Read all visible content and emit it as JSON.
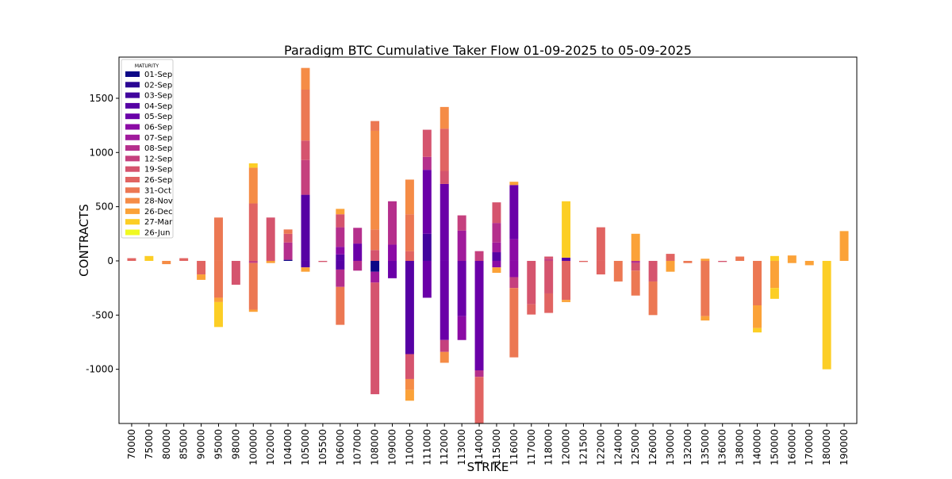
{
  "chart_data": {
    "type": "bar",
    "stacked": true,
    "title": "Paradigm BTC Cumulative Taker Flow 01-09-2025 to 05-09-2025",
    "xlabel": "STRIKE",
    "ylabel": "CONTRACTS",
    "ylim": [
      -1500,
      1880
    ],
    "yticks": [
      -1000,
      -500,
      0,
      500,
      1000,
      1500
    ],
    "legend_title": "MATURITY",
    "legend_position": "top-left",
    "categories": [
      "70000",
      "75000",
      "80000",
      "85000",
      "90000",
      "95000",
      "98000",
      "100000",
      "102000",
      "104000",
      "105000",
      "105500",
      "106000",
      "107000",
      "108000",
      "109000",
      "110000",
      "111000",
      "112000",
      "113000",
      "114000",
      "115000",
      "116000",
      "117000",
      "118000",
      "120000",
      "121500",
      "122000",
      "124000",
      "125000",
      "126000",
      "130000",
      "132000",
      "135000",
      "136000",
      "138000",
      "140000",
      "150000",
      "160000",
      "170000",
      "180000",
      "190000"
    ],
    "maturities": [
      {
        "name": "01-Sep",
        "color": "#0d0887"
      },
      {
        "name": "02-Sep",
        "color": "#2a0593"
      },
      {
        "name": "03-Sep",
        "color": "#41049d"
      },
      {
        "name": "04-Sep",
        "color": "#5601a4"
      },
      {
        "name": "05-Sep",
        "color": "#6a00a8"
      },
      {
        "name": "06-Sep",
        "color": "#8b0aa5"
      },
      {
        "name": "07-Sep",
        "color": "#a01a9c"
      },
      {
        "name": "08-Sep",
        "color": "#b52f8c"
      },
      {
        "name": "12-Sep",
        "color": "#c5407e"
      },
      {
        "name": "19-Sep",
        "color": "#d5546e"
      },
      {
        "name": "26-Sep",
        "color": "#e16462"
      },
      {
        "name": "31-Oct",
        "color": "#ec7853"
      },
      {
        "name": "28-Nov",
        "color": "#f58c46"
      },
      {
        "name": "26-Dec",
        "color": "#fba238"
      },
      {
        "name": "27-Mar",
        "color": "#fcce25"
      },
      {
        "name": "26-Jun",
        "color": "#f0f921"
      }
    ],
    "segments": {
      "70000": [
        {
          "m": "26-Sep",
          "v": 25
        }
      ],
      "75000": [
        {
          "m": "27-Mar",
          "v": 45
        }
      ],
      "80000": [
        {
          "m": "28-Nov",
          "v": -30
        }
      ],
      "85000": [
        {
          "m": "26-Sep",
          "v": 25
        }
      ],
      "90000": [
        {
          "m": "26-Sep",
          "v": -125
        },
        {
          "m": "26-Dec",
          "v": -50
        }
      ],
      "95000": [
        {
          "m": "31-Oct",
          "v": 400
        },
        {
          "m": "31-Oct",
          "v": -340
        },
        {
          "m": "26-Dec",
          "v": -40
        },
        {
          "m": "27-Mar",
          "v": -230
        }
      ],
      "98000": [
        {
          "m": "19-Sep",
          "v": -220
        }
      ],
      "100000": [
        {
          "m": "12-Sep",
          "v": -20
        },
        {
          "m": "26-Sep",
          "v": 530
        },
        {
          "m": "28-Nov",
          "v": 330
        },
        {
          "m": "27-Mar",
          "v": 40
        },
        {
          "m": "31-Oct",
          "v": -430
        },
        {
          "m": "26-Dec",
          "v": -20
        }
      ],
      "102000": [
        {
          "m": "19-Sep",
          "v": 400
        },
        {
          "m": "26-Dec",
          "v": -20
        }
      ],
      "104000": [
        {
          "m": "01-Sep",
          "v": 10
        },
        {
          "m": "08-Sep",
          "v": 160
        },
        {
          "m": "19-Sep",
          "v": 80
        },
        {
          "m": "31-Oct",
          "v": 40
        }
      ],
      "105000": [
        {
          "m": "04-Sep",
          "v": 610
        },
        {
          "m": "12-Sep",
          "v": 320
        },
        {
          "m": "19-Sep",
          "v": 180
        },
        {
          "m": "31-Oct",
          "v": 470
        },
        {
          "m": "28-Nov",
          "v": 200
        },
        {
          "m": "04-Sep",
          "v": -60
        },
        {
          "m": "26-Dec",
          "v": -40
        }
      ],
      "105500": [
        {
          "m": "19-Sep",
          "v": -10
        }
      ],
      "106000": [
        {
          "m": "04-Sep",
          "v": 60
        },
        {
          "m": "06-Sep",
          "v": 70
        },
        {
          "m": "08-Sep",
          "v": 180
        },
        {
          "m": "19-Sep",
          "v": 120
        },
        {
          "m": "26-Dec",
          "v": 50
        },
        {
          "m": "04-Sep",
          "v": -80
        },
        {
          "m": "08-Sep",
          "v": -160
        },
        {
          "m": "31-Oct",
          "v": -350
        }
      ],
      "107000": [
        {
          "m": "05-Sep",
          "v": 160
        },
        {
          "m": "08-Sep",
          "v": 145
        },
        {
          "m": "08-Sep",
          "v": -90
        }
      ],
      "108000": [
        {
          "m": "19-Sep",
          "v": 100
        },
        {
          "m": "31-Oct",
          "v": 190
        },
        {
          "m": "28-Nov",
          "v": 910
        },
        {
          "m": "31-Oct",
          "v": 90
        },
        {
          "m": "01-Sep",
          "v": -100
        },
        {
          "m": "07-Sep",
          "v": -100
        },
        {
          "m": "19-Sep",
          "v": -1030
        }
      ],
      "109000": [
        {
          "m": "06-Sep",
          "v": 150
        },
        {
          "m": "08-Sep",
          "v": 400
        },
        {
          "m": "05-Sep",
          "v": -160
        }
      ],
      "110000": [
        {
          "m": "26-Sep",
          "v": 90
        },
        {
          "m": "31-Oct",
          "v": 340
        },
        {
          "m": "28-Nov",
          "v": 320
        },
        {
          "m": "04-Sep",
          "v": -860
        },
        {
          "m": "19-Sep",
          "v": -230
        },
        {
          "m": "28-Nov",
          "v": -100
        },
        {
          "m": "26-Dec",
          "v": -100
        }
      ],
      "111000": [
        {
          "m": "03-Sep",
          "v": 250
        },
        {
          "m": "05-Sep",
          "v": 590
        },
        {
          "m": "08-Sep",
          "v": 120
        },
        {
          "m": "19-Sep",
          "v": 250
        },
        {
          "m": "05-Sep",
          "v": -340
        }
      ],
      "112000": [
        {
          "m": "05-Sep",
          "v": 710
        },
        {
          "m": "19-Sep",
          "v": 120
        },
        {
          "m": "26-Sep",
          "v": 390
        },
        {
          "m": "28-Nov",
          "v": 200
        },
        {
          "m": "05-Sep",
          "v": -730
        },
        {
          "m": "12-Sep",
          "v": -110
        },
        {
          "m": "28-Nov",
          "v": -100
        }
      ],
      "113000": [
        {
          "m": "07-Sep",
          "v": 280
        },
        {
          "m": "12-Sep",
          "v": 140
        },
        {
          "m": "05-Sep",
          "v": -510
        },
        {
          "m": "06-Sep",
          "v": -220
        }
      ],
      "114000": [
        {
          "m": "12-Sep",
          "v": 90
        },
        {
          "m": "05-Sep",
          "v": -1010
        },
        {
          "m": "08-Sep",
          "v": -60
        },
        {
          "m": "26-Sep",
          "v": -430
        }
      ],
      "115000": [
        {
          "m": "04-Sep",
          "v": 80
        },
        {
          "m": "07-Sep",
          "v": 90
        },
        {
          "m": "08-Sep",
          "v": 180
        },
        {
          "m": "19-Sep",
          "v": 190
        },
        {
          "m": "06-Sep",
          "v": -60
        },
        {
          "m": "26-Dec",
          "v": -50
        }
      ],
      "116000": [
        {
          "m": "06-Sep",
          "v": 200
        },
        {
          "m": "05-Sep",
          "v": 500
        },
        {
          "m": "26-Dec",
          "v": 30
        },
        {
          "m": "06-Sep",
          "v": -150
        },
        {
          "m": "12-Sep",
          "v": -100
        },
        {
          "m": "31-Oct",
          "v": -640
        }
      ],
      "117000": [
        {
          "m": "19-Sep",
          "v": -400
        },
        {
          "m": "26-Sep",
          "v": -95
        }
      ],
      "118000": [
        {
          "m": "12-Sep",
          "v": 20
        },
        {
          "m": "19-Sep",
          "v": 20
        },
        {
          "m": "19-Sep",
          "v": -300
        },
        {
          "m": "26-Sep",
          "v": -180
        }
      ],
      "120000": [
        {
          "m": "04-Sep",
          "v": 30
        },
        {
          "m": "27-Mar",
          "v": 520
        },
        {
          "m": "26-Sep",
          "v": -360
        },
        {
          "m": "26-Dec",
          "v": -20
        }
      ],
      "121500": [
        {
          "m": "26-Sep",
          "v": -10
        }
      ],
      "122000": [
        {
          "m": "26-Sep",
          "v": 310
        },
        {
          "m": "26-Sep",
          "v": -125
        }
      ],
      "124000": [
        {
          "m": "31-Oct",
          "v": -190
        }
      ],
      "125000": [
        {
          "m": "26-Dec",
          "v": 250
        },
        {
          "m": "08-Sep",
          "v": -20
        },
        {
          "m": "19-Sep",
          "v": -70
        },
        {
          "m": "31-Oct",
          "v": -230
        }
      ],
      "126000": [
        {
          "m": "19-Sep",
          "v": -190
        },
        {
          "m": "31-Oct",
          "v": -310
        }
      ],
      "130000": [
        {
          "m": "26-Sep",
          "v": 65
        },
        {
          "m": "26-Dec",
          "v": -100
        }
      ],
      "132000": [
        {
          "m": "31-Oct",
          "v": -20
        }
      ],
      "135000": [
        {
          "m": "26-Dec",
          "v": 20
        },
        {
          "m": "31-Oct",
          "v": -510
        },
        {
          "m": "26-Dec",
          "v": -40
        }
      ],
      "136000": [
        {
          "m": "19-Sep",
          "v": -10
        }
      ],
      "138000": [
        {
          "m": "31-Oct",
          "v": 40
        }
      ],
      "140000": [
        {
          "m": "31-Oct",
          "v": -410
        },
        {
          "m": "26-Dec",
          "v": -210
        },
        {
          "m": "27-Mar",
          "v": -40
        }
      ],
      "150000": [
        {
          "m": "27-Mar",
          "v": 45
        },
        {
          "m": "26-Dec",
          "v": -250
        },
        {
          "m": "27-Mar",
          "v": -100
        }
      ],
      "160000": [
        {
          "m": "26-Dec",
          "v": 50
        },
        {
          "m": "26-Dec",
          "v": -20
        }
      ],
      "170000": [
        {
          "m": "26-Dec",
          "v": -40
        }
      ],
      "180000": [
        {
          "m": "27-Mar",
          "v": -1000
        }
      ],
      "190000": [
        {
          "m": "26-Dec",
          "v": 275
        }
      ]
    }
  }
}
